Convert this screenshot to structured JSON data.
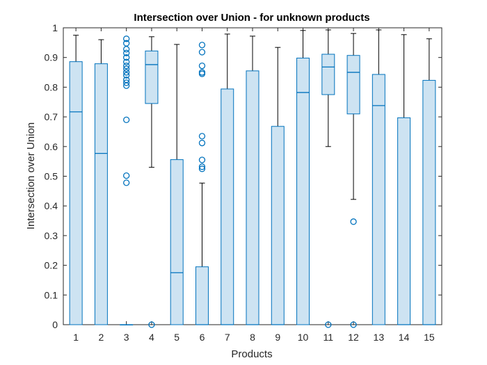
{
  "chart_data": {
    "type": "boxplot",
    "title": "Intersection over Union -  for unknown products",
    "xlabel": "Products",
    "ylabel": "Intersection over Union",
    "ylim": [
      0,
      1
    ],
    "yticks": [
      0,
      0.1,
      0.2,
      0.3,
      0.4,
      0.5,
      0.6,
      0.7,
      0.8,
      0.9,
      1
    ],
    "ytick_labels": [
      "0",
      "0.1",
      "0.2",
      "0.3",
      "0.4",
      "0.5",
      "0.6",
      "0.7",
      "0.8",
      "0.9",
      "1"
    ],
    "categories": [
      "1",
      "2",
      "3",
      "4",
      "5",
      "6",
      "7",
      "8",
      "9",
      "10",
      "11",
      "12",
      "13",
      "14",
      "15"
    ],
    "grid": false,
    "colors": {
      "box_stroke": "#0072BD",
      "box_fill": "#CDE3F2",
      "whisker": "#000000",
      "axis": "#262626"
    },
    "boxes": [
      {
        "category": "1",
        "whisker_low": 0,
        "q1": 0,
        "median": 0.717,
        "q3": 0.886,
        "whisker_high": 0.975,
        "outliers": []
      },
      {
        "category": "2",
        "whisker_low": 0,
        "q1": 0,
        "median": 0.577,
        "q3": 0.879,
        "whisker_high": 0.96,
        "outliers": []
      },
      {
        "category": "3",
        "whisker_low": 0,
        "q1": 0,
        "median": 0,
        "q3": 0,
        "whisker_high": 0,
        "outliers": [
          0.478,
          0.502,
          0.69,
          0.805,
          0.815,
          0.825,
          0.84,
          0.85,
          0.862,
          0.872,
          0.885,
          0.9,
          0.915,
          0.928,
          0.948,
          0.963
        ]
      },
      {
        "category": "4",
        "whisker_low": 0.53,
        "q1": 0.745,
        "median": 0.876,
        "q3": 0.922,
        "whisker_high": 0.97,
        "outliers": [
          0
        ]
      },
      {
        "category": "5",
        "whisker_low": 0,
        "q1": 0,
        "median": 0.175,
        "q3": 0.556,
        "whisker_high": 0.944,
        "outliers": []
      },
      {
        "category": "6",
        "whisker_low": 0,
        "q1": 0,
        "median": 0,
        "q3": 0.195,
        "whisker_high": 0.477,
        "outliers": [
          0.525,
          0.532,
          0.555,
          0.612,
          0.635,
          0.845,
          0.85,
          0.872,
          0.918,
          0.942
        ]
      },
      {
        "category": "7",
        "whisker_low": 0,
        "q1": 0,
        "median": 0,
        "q3": 0.794,
        "whisker_high": 0.979,
        "outliers": []
      },
      {
        "category": "8",
        "whisker_low": 0,
        "q1": 0,
        "median": 0,
        "q3": 0.855,
        "whisker_high": 0.972,
        "outliers": []
      },
      {
        "category": "9",
        "whisker_low": 0,
        "q1": 0,
        "median": 0,
        "q3": 0.668,
        "whisker_high": 0.934,
        "outliers": []
      },
      {
        "category": "10",
        "whisker_low": 0,
        "q1": 0,
        "median": 0.782,
        "q3": 0.898,
        "whisker_high": 0.991,
        "outliers": []
      },
      {
        "category": "11",
        "whisker_low": 0.6,
        "q1": 0.775,
        "median": 0.868,
        "q3": 0.911,
        "whisker_high": 0.993,
        "outliers": [
          0
        ]
      },
      {
        "category": "12",
        "whisker_low": 0.422,
        "q1": 0.71,
        "median": 0.85,
        "q3": 0.907,
        "whisker_high": 0.981,
        "outliers": [
          0.347,
          0
        ]
      },
      {
        "category": "13",
        "whisker_low": 0,
        "q1": 0,
        "median": 0.738,
        "q3": 0.843,
        "whisker_high": 0.993,
        "outliers": []
      },
      {
        "category": "14",
        "whisker_low": 0,
        "q1": 0,
        "median": 0,
        "q3": 0.697,
        "whisker_high": 0.977,
        "outliers": []
      },
      {
        "category": "15",
        "whisker_low": 0,
        "q1": 0,
        "median": 0,
        "q3": 0.823,
        "whisker_high": 0.963,
        "outliers": []
      }
    ]
  }
}
